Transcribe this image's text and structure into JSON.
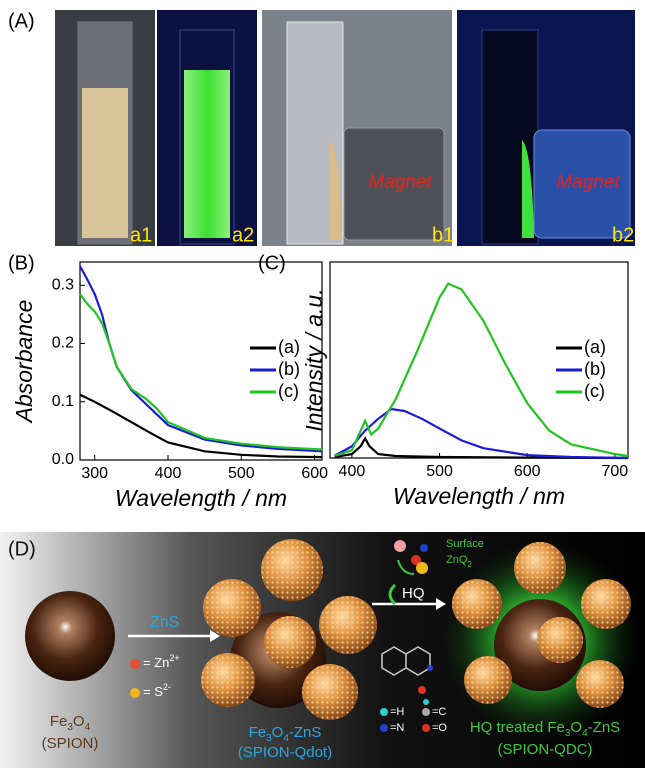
{
  "panel_a": {
    "label": "(A)",
    "photos": [
      "a1",
      "a2",
      "b1",
      "b2"
    ],
    "magnet_labels": [
      "Magnet",
      "Magnet"
    ]
  },
  "chart_data": [
    {
      "type": "line",
      "panel_label": "(B)",
      "y_label": "Absorbance",
      "x_label": "Wavelength / nm",
      "xlim": [
        280,
        610
      ],
      "xticks": [
        300,
        400,
        500,
        600
      ],
      "ylim": [
        0,
        0.34
      ],
      "yticks": [
        {
          "value": 0,
          "label": "0.0"
        },
        0.1,
        0.2,
        0.3
      ],
      "legend": "right",
      "series": [
        {
          "name": "(a)",
          "color": "#000000",
          "x": [
            280,
            300,
            325,
            350,
            375,
            400,
            450,
            500,
            550,
            610
          ],
          "values": [
            0.112,
            0.1,
            0.083,
            0.065,
            0.047,
            0.03,
            0.015,
            0.009,
            0.006,
            0.005
          ]
        },
        {
          "name": "(b)",
          "color": "#1a1adc",
          "x": [
            280,
            290,
            300,
            310,
            320,
            330,
            350,
            375,
            400,
            450,
            500,
            550,
            610
          ],
          "values": [
            0.333,
            0.31,
            0.285,
            0.25,
            0.2,
            0.16,
            0.12,
            0.09,
            0.06,
            0.035,
            0.025,
            0.019,
            0.015
          ]
        },
        {
          "name": "(c)",
          "color": "#22c422",
          "x": [
            280,
            290,
            300,
            310,
            320,
            330,
            350,
            370,
            385,
            400,
            450,
            500,
            550,
            610
          ],
          "values": [
            0.285,
            0.268,
            0.255,
            0.235,
            0.2,
            0.16,
            0.122,
            0.105,
            0.088,
            0.065,
            0.038,
            0.028,
            0.022,
            0.018
          ]
        }
      ]
    },
    {
      "type": "line",
      "panel_label": "(C)",
      "y_label": "Intensity / a.u.",
      "x_label": "Wavelength / nm",
      "xlim": [
        375,
        715
      ],
      "xticks": [
        400,
        500,
        600,
        700
      ],
      "ylim": [
        0,
        100
      ],
      "legend": "right",
      "series": [
        {
          "name": "(a)",
          "color": "#000000",
          "x": [
            380,
            400,
            410,
            415,
            420,
            430,
            450,
            500,
            600,
            715
          ],
          "values": [
            0.5,
            2,
            6,
            10,
            6,
            2,
            1,
            0.5,
            0.2,
            0
          ]
        },
        {
          "name": "(b)",
          "color": "#1a1adc",
          "x": [
            380,
            400,
            415,
            430,
            445,
            460,
            480,
            500,
            525,
            550,
            600,
            650,
            715
          ],
          "values": [
            1,
            6,
            14,
            20,
            25,
            24,
            20,
            15,
            9,
            5,
            1.5,
            0.5,
            0
          ]
        },
        {
          "name": "(c)",
          "color": "#22c422",
          "x": [
            380,
            400,
            410,
            415,
            422,
            430,
            450,
            475,
            500,
            510,
            525,
            550,
            575,
            600,
            625,
            650,
            700,
            715
          ],
          "values": [
            1,
            4,
            14,
            19,
            12,
            15,
            30,
            55,
            82,
            89,
            86,
            70,
            48,
            28,
            14,
            7,
            2,
            1
          ]
        }
      ]
    }
  ],
  "panel_d": {
    "label": "(D)",
    "spion": [
      "Fe",
      "3",
      "O",
      "4"
    ],
    "spion_name": "(SPION)",
    "arrow_label": "ZnS",
    "zn": [
      "= Zn",
      "2+"
    ],
    "s": [
      "= S",
      "2-"
    ],
    "qdot": [
      "Fe",
      "3",
      "O",
      "4",
      "-ZnS"
    ],
    "qdot_name": "(SPION-Qdot)",
    "surface": [
      "Surface",
      "ZnQ",
      "2"
    ],
    "hq": "HQ",
    "atoms": [
      "=H",
      "=C",
      "=N",
      "=O"
    ],
    "qdc": [
      "HQ treated Fe",
      "3",
      "O",
      "4",
      "-ZnS"
    ],
    "qdc_name": "(SPION-QDC)"
  }
}
